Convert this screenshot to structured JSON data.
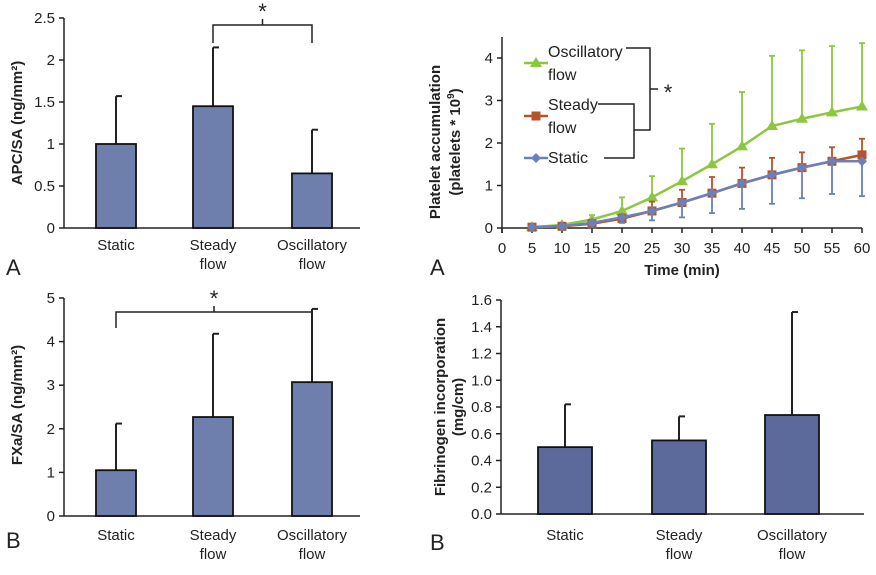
{
  "chart_data": [
    {
      "type": "bar",
      "panel_label": "A",
      "ylabel": "APC/SA (ng/mm²)",
      "categories": [
        [
          "Static"
        ],
        [
          "Steady",
          "flow"
        ],
        [
          "Oscillatory",
          "flow"
        ]
      ],
      "values": [
        1.0,
        1.45,
        0.65
      ],
      "error_upper": [
        1.57,
        2.15,
        1.17
      ],
      "ylim": [
        0,
        2.5
      ],
      "yticks": [
        "0",
        "0.5",
        "1",
        "1.5",
        "2",
        "2.5"
      ],
      "significance": {
        "between": [
          1,
          2
        ],
        "label": "*"
      },
      "bar_color": "#6e7fae"
    },
    {
      "type": "line",
      "panel_label": "A",
      "xlabel": "Time (min)",
      "ylabel": [
        "Platelet accumulation",
        "(platelets * 10",
        "9",
        ")"
      ],
      "x": [
        5,
        10,
        15,
        20,
        25,
        30,
        35,
        40,
        45,
        50,
        55,
        60
      ],
      "xticks": [
        "0",
        "5",
        "10",
        "15",
        "20",
        "25",
        "30",
        "35",
        "40",
        "45",
        "50",
        "55",
        "60"
      ],
      "yticks": [
        "0",
        "1",
        "2",
        "3",
        "4"
      ],
      "xlim": [
        0,
        60
      ],
      "ylim": [
        0,
        4.5
      ],
      "series": [
        {
          "name": [
            "Oscillatory",
            "flow"
          ],
          "color": "#8dc63f",
          "marker": "triangle",
          "values": [
            0.02,
            0.07,
            0.2,
            0.4,
            0.72,
            1.1,
            1.5,
            1.92,
            2.4,
            2.57,
            2.72,
            2.86
          ],
          "error_upper": [
            0.04,
            0.1,
            0.3,
            0.72,
            1.22,
            1.87,
            2.45,
            3.2,
            4.05,
            4.18,
            4.28,
            4.35
          ]
        },
        {
          "name": [
            "Steady",
            "flow"
          ],
          "color": "#b5532a",
          "marker": "square",
          "values": [
            0.02,
            0.04,
            0.1,
            0.22,
            0.4,
            0.6,
            0.82,
            1.05,
            1.25,
            1.42,
            1.57,
            1.72
          ],
          "error_upper": [
            0.04,
            0.07,
            0.17,
            0.32,
            0.62,
            0.9,
            1.2,
            1.42,
            1.65,
            1.78,
            1.9,
            2.1
          ]
        },
        {
          "name": [
            "Static"
          ],
          "color": "#6b80b8",
          "marker": "diamond",
          "values": [
            0.02,
            0.04,
            0.12,
            0.25,
            0.4,
            0.6,
            0.82,
            1.05,
            1.25,
            1.42,
            1.57,
            1.57
          ],
          "error_lower": [
            0.0,
            0.01,
            0.06,
            0.12,
            0.18,
            0.25,
            0.35,
            0.45,
            0.57,
            0.7,
            0.8,
            0.75
          ]
        }
      ],
      "significance": {
        "label": "*"
      }
    },
    {
      "type": "bar",
      "panel_label": "B",
      "ylabel": "FXa/SA (ng/mm²)",
      "categories": [
        [
          "Static"
        ],
        [
          "Steady",
          "flow"
        ],
        [
          "Oscillatory",
          "flow"
        ]
      ],
      "values": [
        1.05,
        2.27,
        3.07
      ],
      "error_upper": [
        2.12,
        4.18,
        4.75
      ],
      "ylim": [
        0,
        5
      ],
      "yticks": [
        "0",
        "1",
        "2",
        "3",
        "4",
        "5"
      ],
      "significance": {
        "between": [
          0,
          2
        ],
        "label": "*"
      },
      "bar_color": "#6e7fae"
    },
    {
      "type": "bar",
      "panel_label": "B",
      "ylabel": [
        "Fibrinogen incorporation",
        "(mg/cm)"
      ],
      "categories": [
        [
          "Static"
        ],
        [
          "Steady",
          "flow"
        ],
        [
          "Oscillatory",
          "flow"
        ]
      ],
      "values": [
        0.5,
        0.55,
        0.74
      ],
      "error_upper": [
        0.82,
        0.73,
        1.51
      ],
      "ylim": [
        0,
        1.6
      ],
      "yticks": [
        "0.0",
        "0.2",
        "0.4",
        "0.6",
        "0.8",
        "1.0",
        "1.2",
        "1.4",
        "1.6"
      ],
      "bar_color": "#5b6a9b"
    }
  ]
}
